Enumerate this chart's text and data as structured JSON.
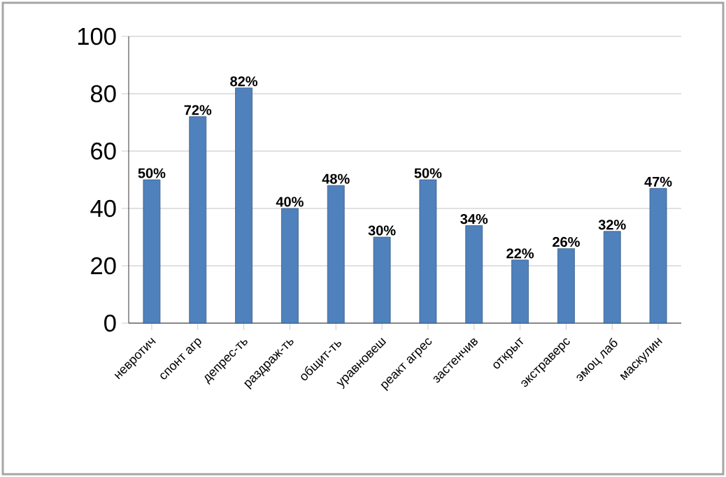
{
  "chart_data": {
    "type": "bar",
    "categories": [
      "невротич",
      "спонт агр",
      "депрес-ть",
      "раздраж-ть",
      "общит-ть",
      "уравновеш",
      "реакт агрес",
      "застенчив",
      "открыт",
      "экстраверс",
      "эмоц лаб",
      "маскулин"
    ],
    "values": [
      50,
      72,
      82,
      40,
      48,
      30,
      50,
      34,
      22,
      26,
      32,
      47
    ],
    "value_labels": [
      "50%",
      "72%",
      "82%",
      "40%",
      "48%",
      "30%",
      "50%",
      "34%",
      "22%",
      "26%",
      "32%",
      "47%"
    ],
    "color": "#4f81bd",
    "ylim": [
      0,
      100
    ],
    "yticks": [
      0,
      20,
      40,
      60,
      80,
      100
    ],
    "grid": "y"
  }
}
